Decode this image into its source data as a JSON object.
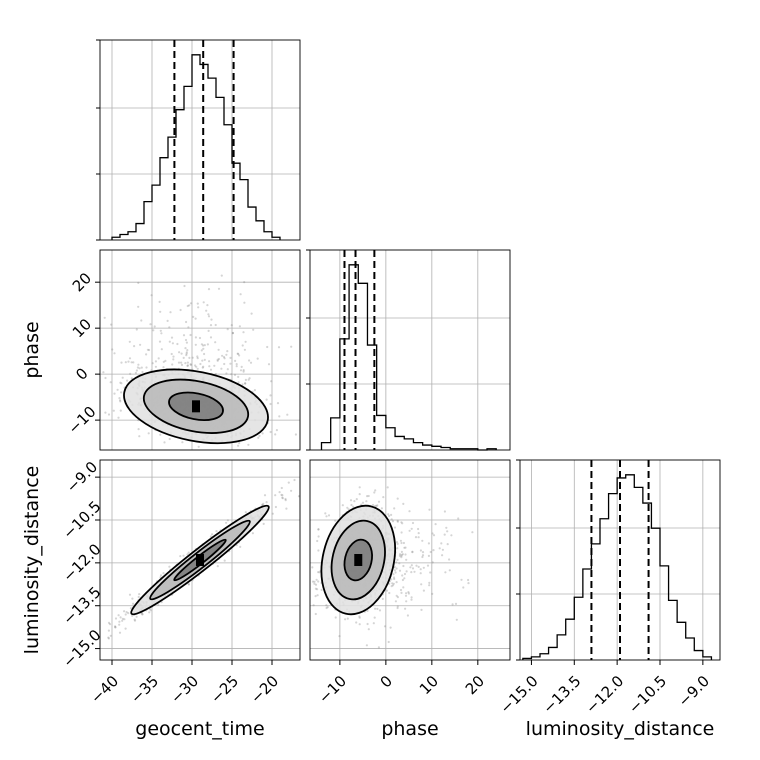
{
  "chart_data": {
    "type": "corner",
    "parameters": [
      "geocent_time",
      "phase",
      "luminosity_distance"
    ],
    "ranges": {
      "geocent_time": [
        -41.5,
        -16.5
      ],
      "phase": [
        -16.5,
        27.0
      ],
      "luminosity_distance": [
        -15.4,
        -8.4
      ]
    },
    "ticks": {
      "geocent_time": {
        "values": [
          -40,
          -35,
          -30,
          -25,
          -20
        ],
        "labels": [
          "−40",
          "−35",
          "−30",
          "−25",
          "−20"
        ]
      },
      "phase": {
        "values": [
          -10,
          0,
          10,
          20
        ],
        "labels": [
          "−10",
          "0",
          "10",
          "20"
        ]
      },
      "luminosity_distance": {
        "values": [
          -15.0,
          -13.5,
          -12.0,
          -10.5,
          -9.0
        ],
        "labels": [
          "−15.0",
          "−13.5",
          "−12.0",
          "−10.5",
          "−9.0"
        ]
      }
    },
    "quantiles": {
      "geocent_time": [
        -32.2,
        -28.6,
        -24.8
      ],
      "phase": [
        -9.0,
        -6.6,
        -2.5
      ],
      "luminosity_distance": [
        -12.9,
        -11.9,
        -10.9
      ]
    },
    "histograms": {
      "geocent_time": {
        "edges": [
          -40.0,
          -39.0,
          -38.0,
          -37.0,
          -36.0,
          -35.0,
          -34.0,
          -33.0,
          -32.0,
          -31.0,
          -30.0,
          -29.0,
          -28.0,
          -27.0,
          -26.0,
          -25.0,
          -24.0,
          -23.0,
          -22.0,
          -21.0,
          -20.0,
          -19.0
        ],
        "counts": [
          2,
          4,
          6,
          12,
          28,
          40,
          60,
          75,
          95,
          112,
          135,
          128,
          118,
          104,
          84,
          56,
          44,
          24,
          14,
          6,
          2
        ]
      },
      "phase": {
        "edges": [
          -14.0,
          -12.0,
          -10.0,
          -8.0,
          -6.0,
          -4.0,
          -2.0,
          0.0,
          2.0,
          4.0,
          6.0,
          8.0,
          10.0,
          12.0,
          14.0,
          16.0,
          18.0,
          20.0,
          22.0,
          24.0
        ],
        "counts": [
          6,
          26,
          90,
          150,
          135,
          85,
          28,
          18,
          11,
          9,
          6,
          4,
          3,
          2,
          1,
          1,
          1,
          0,
          1
        ]
      },
      "luminosity_distance": {
        "edges": [
          -15.3,
          -15.0,
          -14.7,
          -14.4,
          -14.1,
          -13.8,
          -13.5,
          -13.2,
          -12.9,
          -12.6,
          -12.3,
          -12.0,
          -11.7,
          -11.4,
          -11.1,
          -10.8,
          -10.5,
          -10.2,
          -9.9,
          -9.6,
          -9.3,
          -9.0,
          -8.7
        ],
        "counts": [
          1,
          2,
          4,
          8,
          16,
          26,
          40,
          58,
          74,
          90,
          106,
          116,
          118,
          110,
          100,
          84,
          60,
          38,
          24,
          14,
          6,
          2
        ]
      }
    },
    "densities": [
      {
        "x": "geocent_time",
        "y": "phase",
        "mean": [
          -29.5,
          -7.0
        ],
        "sd": [
          4.5,
          4.0
        ],
        "rho": -0.3
      },
      {
        "x": "geocent_time",
        "y": "luminosity_distance",
        "mean": [
          -29.0,
          -11.9
        ],
        "sd": [
          4.3,
          0.95
        ],
        "rho": 0.97
      },
      {
        "x": "phase",
        "y": "luminosity_distance",
        "mean": [
          -6.0,
          -11.9
        ],
        "sd": [
          4.0,
          0.95
        ],
        "rho": 0.2
      }
    ],
    "grid": true,
    "colors": {
      "lines": "#000000",
      "points": "#888888",
      "grid": "#b0b0b0"
    }
  }
}
